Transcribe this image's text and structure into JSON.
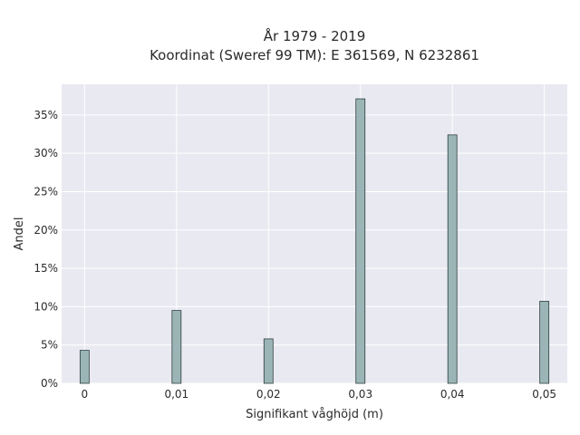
{
  "chart_data": {
    "type": "bar",
    "title_line1": "År 1979 - 2019",
    "title_line2": "Koordinat (Sweref 99 TM): E 361569, N 6232861",
    "xlabel": "Signifikant våghöjd (m)",
    "ylabel": "Andel",
    "x": [
      0,
      0.01,
      0.02,
      0.03,
      0.04,
      0.05
    ],
    "x_tick_labels": [
      "0",
      "0,01",
      "0,02",
      "0,03",
      "0,04",
      "0,05"
    ],
    "values": [
      4.3,
      9.5,
      5.8,
      37.1,
      32.4,
      10.7
    ],
    "y_ticks": [
      0,
      5,
      10,
      15,
      20,
      25,
      30,
      35
    ],
    "y_tick_labels": [
      "0%",
      "5%",
      "10%",
      "15%",
      "20%",
      "25%",
      "30%",
      "35%"
    ],
    "xlim": [
      -0.0025,
      0.0525
    ],
    "ylim": [
      0,
      39
    ],
    "grid": true,
    "colors": {
      "bar": "#9bb5b6",
      "plot_bg": "#e9e9f1"
    }
  }
}
